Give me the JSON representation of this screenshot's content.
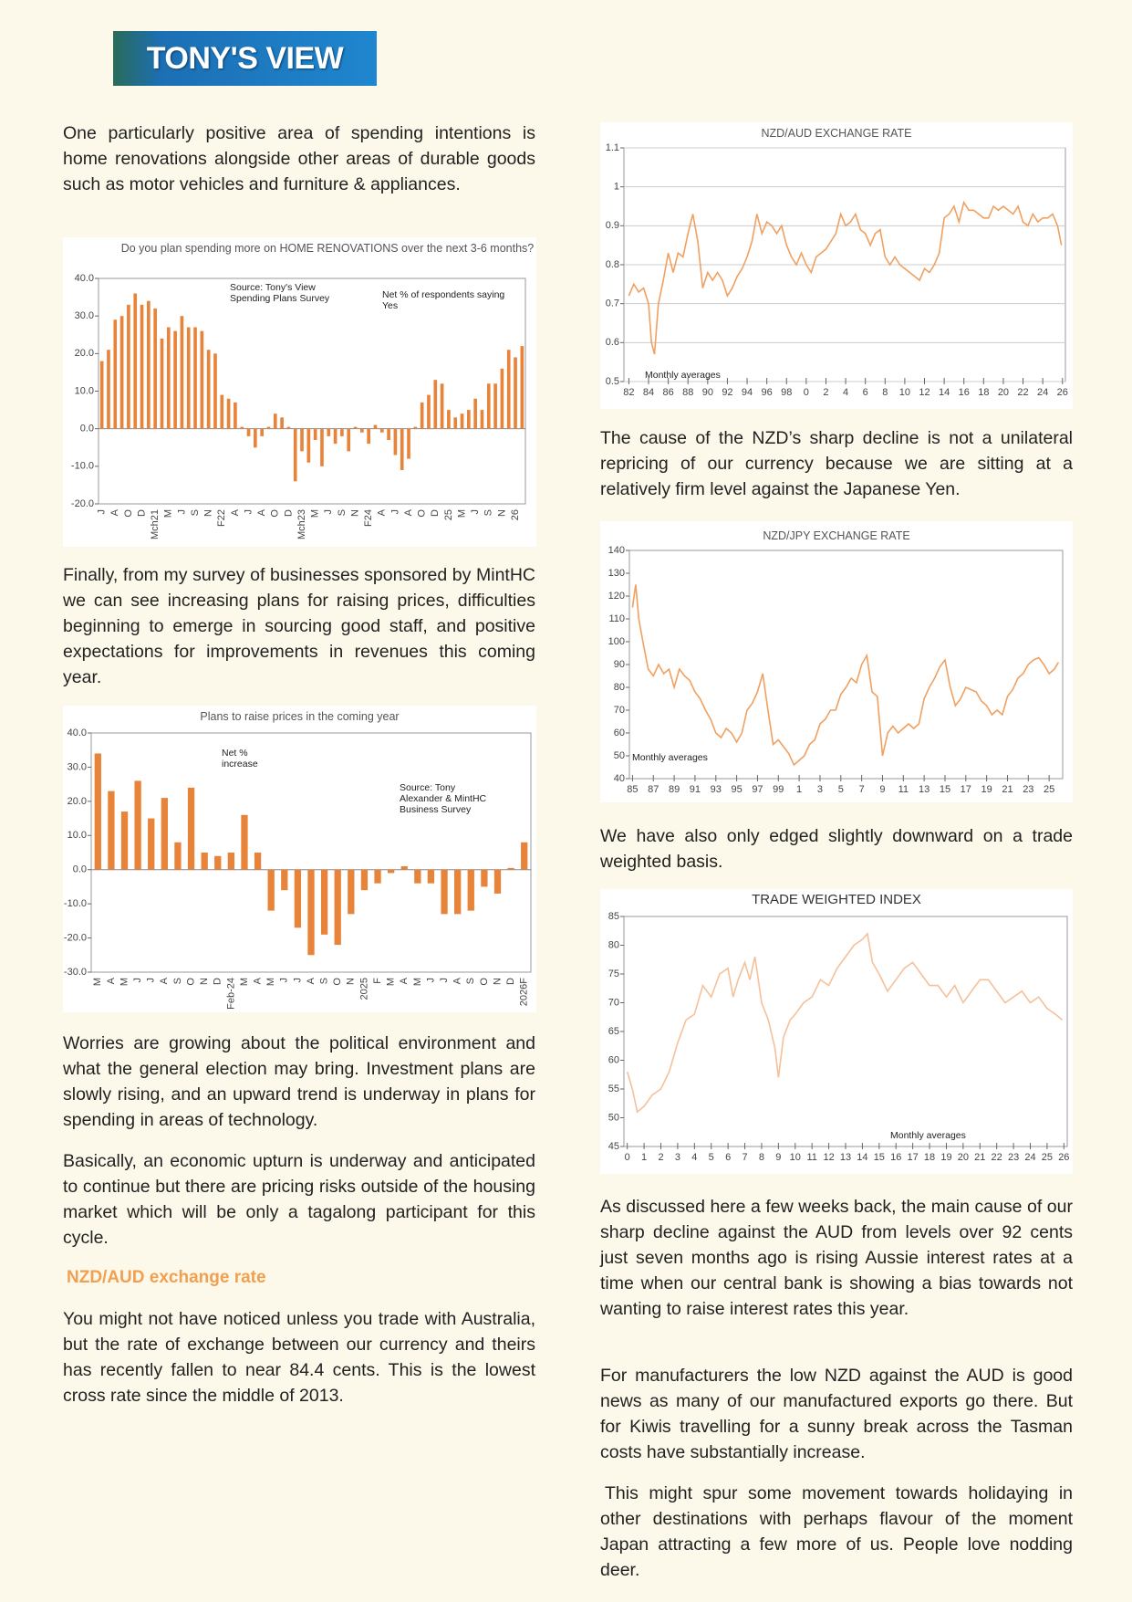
{
  "header": {
    "logo": "TONY'S VIEW"
  },
  "paragraphs": [
    "One particularly positive area of spending intentions is home renovations alongside other areas of durable goods such as motor vehicles and furniture & appliances.",
    "Finally, from my survey of businesses sponsored by MintHC we can see increasing plans for raising prices, difficulties beginning to emerge in sourcing good staff, and positive expectations for improvements in revenues this coming year.",
    "Worries are growing about the political environment and what the general election may bring. Investment plans are slowly rising, and an upward trend is underway in plans for spending in areas of technology.",
    "Basically, an economic upturn is underway and anticipated to continue but there are pricing risks outside of the housing market which will be only a tagalong participant for this cycle.",
    "You might not have noticed unless you trade with Australia, but the rate of exchange between our currency and theirs has recently fallen to near 84.4 cents. This is the lowest cross rate since the middle of 2013.",
    "The cause of the NZD’s sharp decline is not a unilateral repricing of our currency because we are sitting at a relatively firm level against the Japanese Yen.",
    "We have also only edged slightly downward on a trade weighted basis.",
    "As discussed here a few weeks back, the main cause of our sharp decline against the AUD from levels over 92 cents just seven months ago is rising Aussie interest rates at a time when our central bank is showing a bias towards not wanting to raise interest rates this year.",
    "For manufacturers the low NZD against the AUD is good news as many of our manufactured exports go there. But for Kiwis travelling for a sunny break across the Tasman costs have substantially increase.",
    "This might spur some movement towards holidaying in other destinations with perhaps flavour of the moment Japan attracting a few more of us. People love nodding deer."
  ],
  "heading": "NZD/AUD exchange rate",
  "chart_data": [
    {
      "type": "bar",
      "title": "Do you plan spending more on HOME RENOVATIONS over the next 3-6 months?",
      "annotations": [
        "Source: Tony's View Spending Plans Survey",
        "Net % of respondents saying Yes"
      ],
      "categories": [
        "J",
        null,
        "A",
        null,
        "O",
        null,
        "D",
        null,
        "Mch21",
        null,
        "M",
        null,
        "J",
        null,
        "S",
        null,
        "N",
        null,
        "F22",
        null,
        "A",
        null,
        "J",
        null,
        "A",
        null,
        "O",
        null,
        "D",
        null,
        "Mch23",
        null,
        "M",
        null,
        "J",
        null,
        "S",
        null,
        "N",
        null,
        "F24",
        null,
        "A",
        null,
        "J",
        null,
        "A",
        null,
        "O",
        null,
        "D",
        null,
        "25",
        null,
        "M",
        null,
        "J",
        null,
        "S",
        null,
        "N",
        null,
        "26",
        null
      ],
      "values": [
        18,
        21,
        29,
        30,
        33,
        36,
        33,
        34,
        32,
        24,
        27,
        26,
        30,
        27,
        27,
        26,
        21,
        20,
        9,
        8,
        7,
        0.5,
        -2,
        -5,
        -2,
        0.5,
        4,
        3,
        0.5,
        -14,
        -6,
        -9,
        -3,
        -10,
        -2,
        -4,
        -2,
        -6,
        0.5,
        -1,
        -4,
        1,
        -1,
        -3,
        -7,
        -11,
        -8,
        0.5,
        7,
        9,
        13,
        12,
        5,
        3,
        4,
        5,
        8,
        5,
        12,
        12,
        16,
        21,
        19,
        22
      ],
      "color": "#e8833a",
      "ylim": [
        -20,
        40
      ],
      "yticks": [
        {
          "value": -20,
          "label": "-20.0"
        },
        {
          "value": -10,
          "label": "-10.0"
        },
        {
          "value": 0,
          "label": "0.0"
        },
        {
          "value": 10,
          "label": "10.0"
        },
        {
          "value": 20,
          "label": "20.0"
        },
        {
          "value": 30,
          "label": "30.0"
        },
        {
          "value": 40,
          "label": "40.0"
        }
      ],
      "grid": false
    },
    {
      "type": "bar",
      "title": "Plans to raise prices in the coming year",
      "annotations": [
        "Net % increase",
        "Source: Tony Alexander & MintHC Business Survey"
      ],
      "categories": [
        "M",
        "A",
        "M",
        "J",
        "J",
        "A",
        "S",
        "O",
        "N",
        "D",
        "Feb-24",
        "M",
        "A",
        "M",
        "J",
        "J",
        "A",
        "S",
        "O",
        "N",
        "2025",
        "F",
        "M",
        "A",
        "M",
        "J",
        "J",
        "A",
        "S",
        "O",
        "N",
        "D",
        "2026F"
      ],
      "values": [
        34,
        23,
        17,
        26,
        15,
        21,
        8,
        24,
        5,
        4,
        5,
        16,
        5,
        -12,
        -6,
        -17,
        -25,
        -19,
        -22,
        -13,
        -6,
        -4,
        -1,
        1,
        -4,
        -4,
        -13,
        -13,
        -12,
        -5,
        -7,
        0.5,
        8
      ],
      "color": "#e8833a",
      "ylim": [
        -30,
        40
      ],
      "yticks": [
        {
          "value": -30,
          "label": "-30.0"
        },
        {
          "value": -20,
          "label": "-20.0"
        },
        {
          "value": -10,
          "label": "-10.0"
        },
        {
          "value": 0,
          "label": "0.0"
        },
        {
          "value": 10,
          "label": "10.0"
        },
        {
          "value": 20,
          "label": "20.0"
        },
        {
          "value": 30,
          "label": "30.0"
        },
        {
          "value": 40,
          "label": "40.0"
        }
      ],
      "grid": false
    },
    {
      "type": "line",
      "title": "NZD/AUD EXCHANGE RATE",
      "annotations": [
        "Monthly averages"
      ],
      "x": [
        1982,
        1982.5,
        1983,
        1983.5,
        1984,
        1984.3,
        1984.6,
        1985,
        1985.5,
        1986,
        1986.5,
        1987,
        1987.5,
        1988,
        1988.5,
        1989,
        1989.5,
        1990,
        1990.5,
        1991,
        1991.5,
        1992,
        1992.5,
        1993,
        1993.5,
        1994,
        1994.5,
        1995,
        1995.5,
        1996,
        1996.5,
        1997,
        1997.5,
        1998,
        1998.5,
        1999,
        1999.5,
        2000,
        2000.5,
        2001,
        2001.5,
        2002,
        2002.5,
        2003,
        2003.5,
        2004,
        2004.5,
        2005,
        2005.5,
        2006,
        2006.5,
        2007,
        2007.5,
        2008,
        2008.5,
        2009,
        2009.5,
        2010,
        2010.5,
        2011,
        2011.5,
        2012,
        2012.5,
        2013,
        2013.5,
        2014,
        2014.5,
        2015,
        2015.5,
        2016,
        2016.5,
        2017,
        2017.5,
        2018,
        2018.5,
        2019,
        2019.5,
        2020,
        2020.5,
        2021,
        2021.5,
        2022,
        2022.5,
        2023,
        2023.5,
        2024,
        2024.5,
        2025,
        2025.5,
        2025.9
      ],
      "values": [
        0.72,
        0.75,
        0.73,
        0.74,
        0.7,
        0.6,
        0.57,
        0.7,
        0.76,
        0.83,
        0.78,
        0.83,
        0.82,
        0.88,
        0.93,
        0.86,
        0.74,
        0.78,
        0.76,
        0.78,
        0.76,
        0.72,
        0.74,
        0.77,
        0.79,
        0.82,
        0.86,
        0.93,
        0.88,
        0.91,
        0.9,
        0.88,
        0.9,
        0.85,
        0.82,
        0.8,
        0.83,
        0.8,
        0.78,
        0.82,
        0.83,
        0.84,
        0.86,
        0.88,
        0.93,
        0.9,
        0.91,
        0.93,
        0.89,
        0.88,
        0.85,
        0.88,
        0.89,
        0.82,
        0.8,
        0.82,
        0.8,
        0.79,
        0.78,
        0.77,
        0.76,
        0.79,
        0.78,
        0.8,
        0.83,
        0.92,
        0.93,
        0.95,
        0.91,
        0.96,
        0.94,
        0.94,
        0.93,
        0.92,
        0.92,
        0.95,
        0.94,
        0.95,
        0.94,
        0.93,
        0.95,
        0.91,
        0.9,
        0.93,
        0.91,
        0.92,
        0.92,
        0.93,
        0.9,
        0.85
      ],
      "color": "#f0a060",
      "xlim": [
        1981.5,
        2026.3
      ],
      "xticks": [
        {
          "value": 1982,
          "label": "82"
        },
        {
          "value": 1984,
          "label": "84"
        },
        {
          "value": 1986,
          "label": "86"
        },
        {
          "value": 1988,
          "label": "88"
        },
        {
          "value": 1990,
          "label": "90"
        },
        {
          "value": 1992,
          "label": "92"
        },
        {
          "value": 1994,
          "label": "94"
        },
        {
          "value": 1996,
          "label": "96"
        },
        {
          "value": 1998,
          "label": "98"
        },
        {
          "value": 2000,
          "label": "0"
        },
        {
          "value": 2002,
          "label": "2"
        },
        {
          "value": 2004,
          "label": "4"
        },
        {
          "value": 2006,
          "label": "6"
        },
        {
          "value": 2008,
          "label": "8"
        },
        {
          "value": 2010,
          "label": "10"
        },
        {
          "value": 2012,
          "label": "12"
        },
        {
          "value": 2014,
          "label": "14"
        },
        {
          "value": 2016,
          "label": "16"
        },
        {
          "value": 2018,
          "label": "18"
        },
        {
          "value": 2020,
          "label": "20"
        },
        {
          "value": 2022,
          "label": "22"
        },
        {
          "value": 2024,
          "label": "24"
        },
        {
          "value": 2026,
          "label": "26"
        }
      ],
      "ylim": [
        0.5,
        1.1
      ],
      "yticks": [
        0.5,
        0.6,
        0.7,
        0.8,
        0.9,
        1,
        1.1
      ],
      "grid": true
    },
    {
      "type": "line",
      "title": "NZD/JPY EXCHANGE RATE",
      "annotations": [
        "Monthly averages"
      ],
      "x": [
        1985,
        1985.3,
        1985.6,
        1986,
        1986.5,
        1987,
        1987.5,
        1988,
        1988.5,
        1989,
        1989.5,
        1990,
        1990.5,
        1991,
        1991.5,
        1992,
        1992.5,
        1993,
        1993.5,
        1994,
        1994.5,
        1995,
        1995.5,
        1996,
        1996.5,
        1997,
        1997.5,
        1998,
        1998.5,
        1999,
        1999.5,
        2000,
        2000.5,
        2001,
        2001.5,
        2002,
        2002.5,
        2003,
        2003.5,
        2004,
        2004.5,
        2005,
        2005.5,
        2006,
        2006.5,
        2007,
        2007.5,
        2008,
        2008.5,
        2009,
        2009.5,
        2010,
        2010.5,
        2011,
        2011.5,
        2012,
        2012.5,
        2013,
        2013.5,
        2014,
        2014.5,
        2015,
        2015.5,
        2016,
        2016.5,
        2017,
        2017.5,
        2018,
        2018.5,
        2019,
        2019.5,
        2020,
        2020.5,
        2021,
        2021.5,
        2022,
        2022.5,
        2023,
        2023.5,
        2024,
        2024.5,
        2025,
        2025.5,
        2025.9
      ],
      "values": [
        115,
        125,
        110,
        100,
        88,
        85,
        90,
        86,
        88,
        80,
        88,
        85,
        83,
        78,
        75,
        70,
        66,
        60,
        58,
        62,
        60,
        56,
        60,
        70,
        73,
        78,
        86,
        70,
        55,
        57,
        54,
        51,
        46,
        48,
        50,
        55,
        57,
        64,
        66,
        70,
        70,
        77,
        80,
        84,
        82,
        90,
        94,
        78,
        76,
        50,
        60,
        63,
        60,
        62,
        64,
        62,
        64,
        75,
        80,
        84,
        89,
        92,
        80,
        72,
        75,
        80,
        79,
        78,
        74,
        72,
        68,
        70,
        68,
        76,
        79,
        84,
        86,
        90,
        92,
        93,
        90,
        86,
        88,
        91
      ],
      "color": "#f0a060",
      "xlim": [
        1984.7,
        2026.3
      ],
      "xticks": [
        {
          "value": 1985,
          "label": "85"
        },
        {
          "value": 1987,
          "label": "87"
        },
        {
          "value": 1989,
          "label": "89"
        },
        {
          "value": 1991,
          "label": "91"
        },
        {
          "value": 1993,
          "label": "93"
        },
        {
          "value": 1995,
          "label": "95"
        },
        {
          "value": 1997,
          "label": "97"
        },
        {
          "value": 1999,
          "label": "99"
        },
        {
          "value": 2001,
          "label": "1"
        },
        {
          "value": 2003,
          "label": "3"
        },
        {
          "value": 2005,
          "label": "5"
        },
        {
          "value": 2007,
          "label": "7"
        },
        {
          "value": 2009,
          "label": "9"
        },
        {
          "value": 2011,
          "label": "11"
        },
        {
          "value": 2013,
          "label": "13"
        },
        {
          "value": 2015,
          "label": "15"
        },
        {
          "value": 2017,
          "label": "17"
        },
        {
          "value": 2019,
          "label": "19"
        },
        {
          "value": 2021,
          "label": "21"
        },
        {
          "value": 2023,
          "label": "23"
        },
        {
          "value": 2025,
          "label": "25"
        }
      ],
      "ylim": [
        40,
        140
      ],
      "yticks": [
        40,
        50,
        60,
        70,
        80,
        90,
        100,
        110,
        120,
        130,
        140
      ],
      "grid": false
    },
    {
      "type": "line",
      "title": "TRADE WEIGHTED INDEX",
      "annotations": [
        "Monthly averages"
      ],
      "x": [
        0,
        0.3,
        0.6,
        1,
        1.5,
        2,
        2.5,
        3,
        3.5,
        4,
        4.5,
        5,
        5.5,
        6,
        6.3,
        6.6,
        7,
        7.3,
        7.6,
        8,
        8.4,
        8.8,
        9,
        9.3,
        9.7,
        10,
        10.5,
        11,
        11.5,
        12,
        12.5,
        13,
        13.5,
        14,
        14.3,
        14.6,
        15,
        15.5,
        16,
        16.5,
        17,
        17.5,
        18,
        18.5,
        19,
        19.5,
        20,
        20.5,
        21,
        21.5,
        22,
        22.5,
        23,
        23.5,
        24,
        24.5,
        25,
        25.5,
        25.9
      ],
      "values": [
        58,
        55,
        51,
        52,
        54,
        55,
        58,
        63,
        67,
        68,
        73,
        71,
        75,
        76,
        71,
        74,
        77,
        74,
        78,
        70,
        67,
        62,
        57,
        64,
        67,
        68,
        70,
        71,
        74,
        73,
        76,
        78,
        80,
        81,
        82,
        77,
        75,
        72,
        74,
        76,
        77,
        75,
        73,
        73,
        71,
        73,
        70,
        72,
        74,
        74,
        72,
        70,
        71,
        72,
        70,
        71,
        69,
        68,
        67
      ],
      "color": "#f5c09a",
      "xlim": [
        -0.2,
        26.2
      ],
      "xticks": [
        0,
        1,
        2,
        3,
        4,
        5,
        6,
        7,
        8,
        9,
        10,
        11,
        12,
        13,
        14,
        15,
        16,
        17,
        18,
        19,
        20,
        21,
        22,
        23,
        24,
        25,
        26
      ],
      "ylim": [
        45,
        85
      ],
      "yticks": [
        45,
        50,
        55,
        60,
        65,
        70,
        75,
        80,
        85
      ],
      "grid": false
    }
  ]
}
